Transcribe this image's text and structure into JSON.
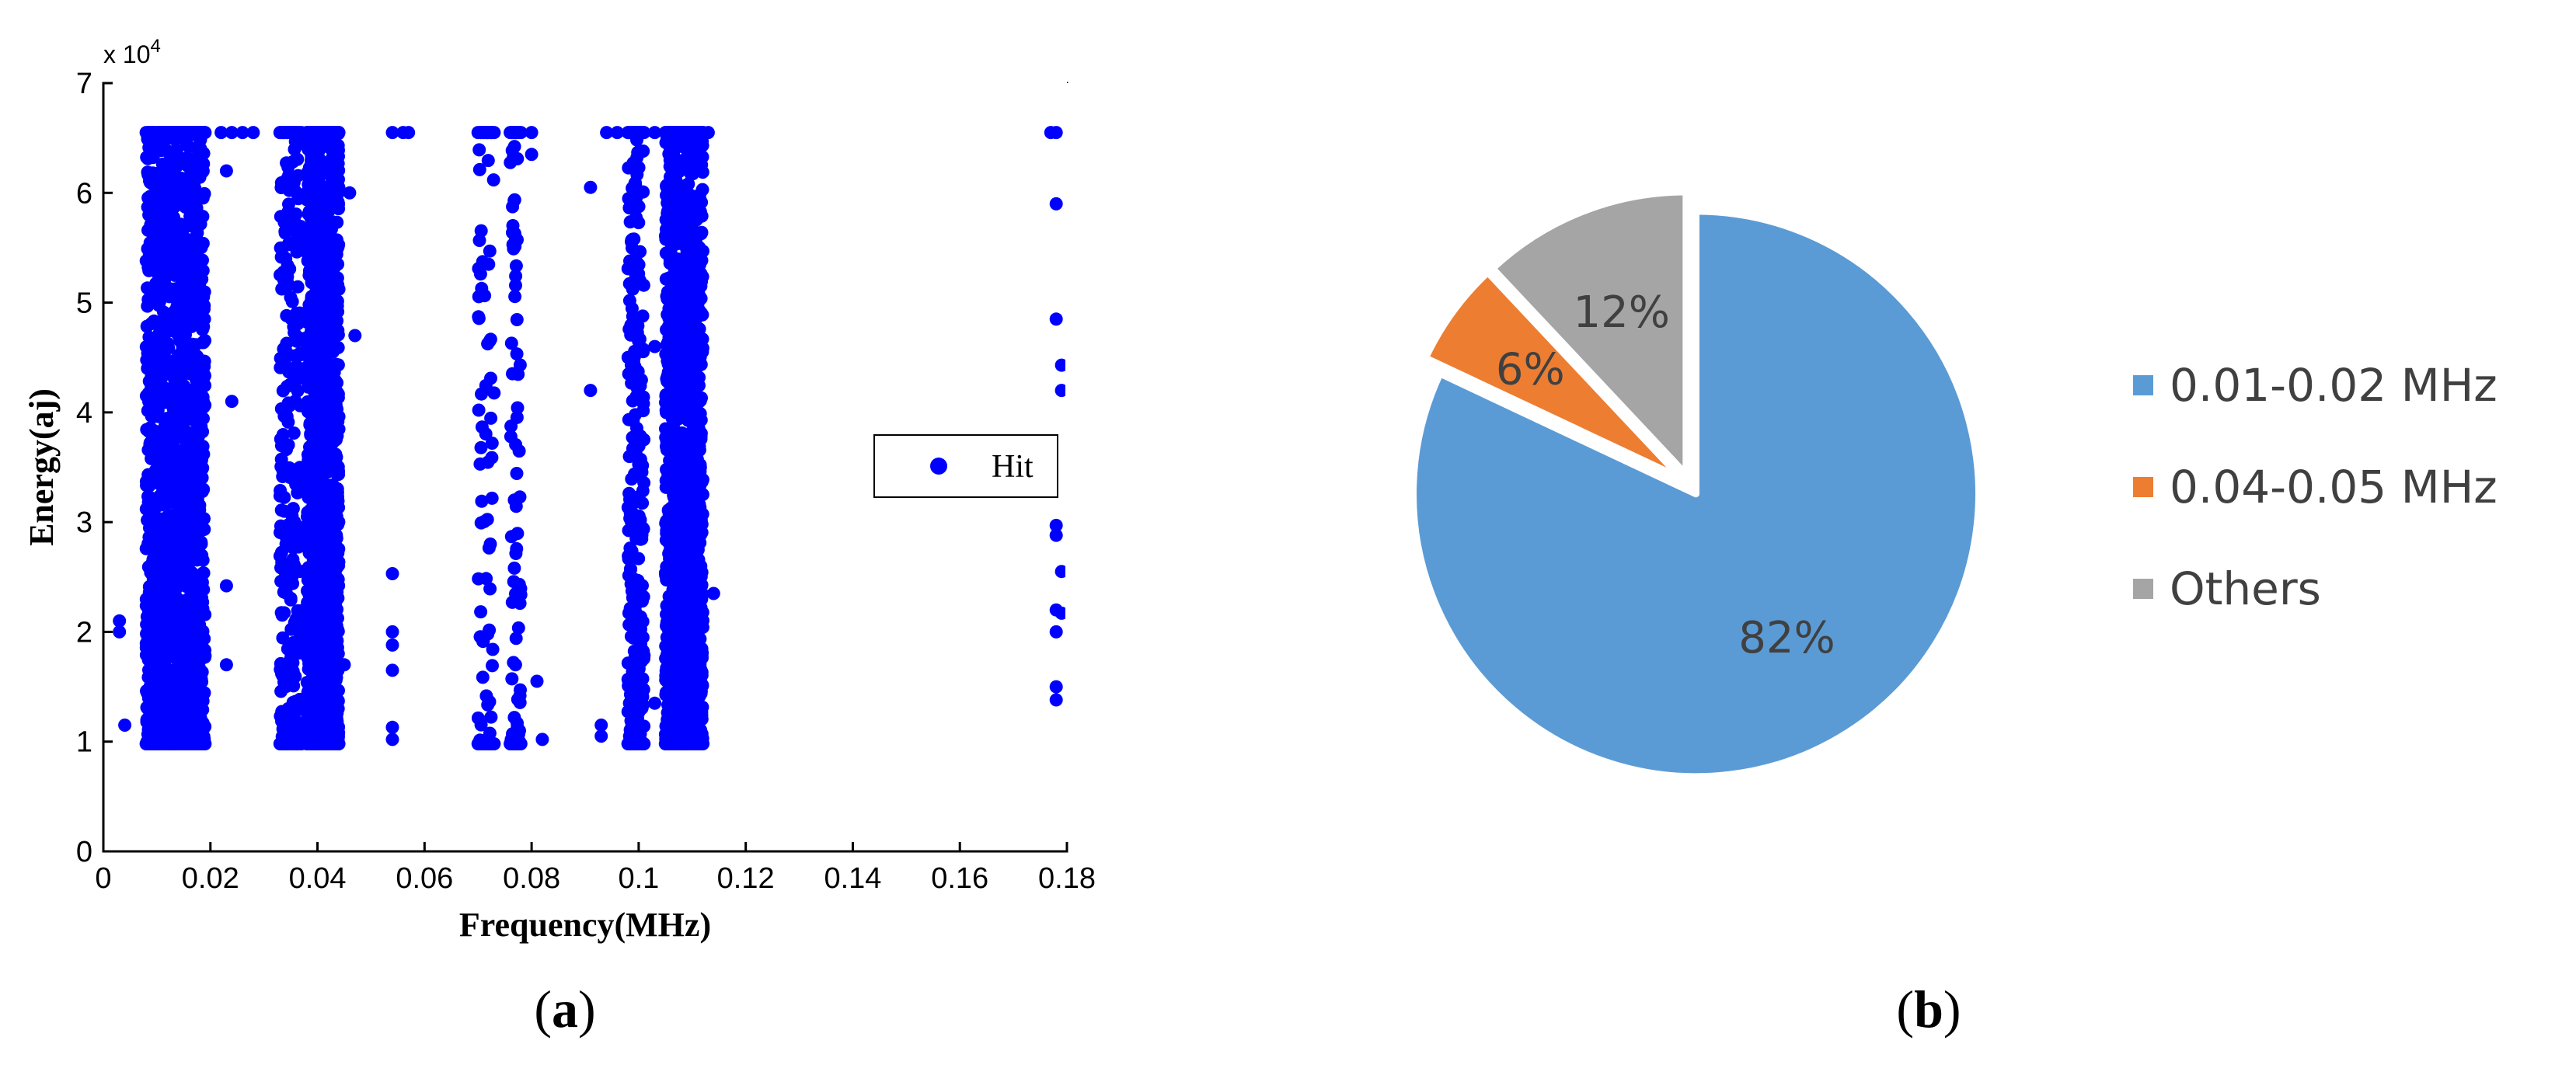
{
  "chart_data": [
    {
      "type": "scatter",
      "panel_label": "a",
      "xlabel": "Frequency(MHz)",
      "ylabel": "Energy(aj)",
      "y_multiplier": "x 10",
      "y_multiplier_exp": "4",
      "xlim": [
        0,
        0.18
      ],
      "ylim": [
        0,
        70000
      ],
      "x_ticks": [
        "0",
        "0.02",
        "0.04",
        "0.06",
        "0.08",
        "0.1",
        "0.12",
        "0.14",
        "0.16",
        "0.18"
      ],
      "y_ticks": [
        "0",
        "1",
        "2",
        "3",
        "4",
        "5",
        "6",
        "7"
      ],
      "grid": false,
      "legend_position": "right-middle",
      "legend": [
        "Hit"
      ],
      "marker_color": "#0000ff",
      "series": [
        {
          "name": "Hit",
          "bands": [
            {
              "x_range": [
                0.008,
                0.019
              ],
              "y_range": [
                9800,
                65500
              ],
              "density": "very-high"
            },
            {
              "x_range": [
                0.033,
                0.037
              ],
              "y_range": [
                9800,
                65500
              ],
              "density": "medium"
            },
            {
              "x_range": [
                0.038,
                0.044
              ],
              "y_range": [
                9800,
                65500
              ],
              "density": "very-high"
            },
            {
              "x_range": [
                0.07,
                0.073
              ],
              "y_range": [
                9800,
                65500
              ],
              "density": "low"
            },
            {
              "x_range": [
                0.076,
                0.078
              ],
              "y_range": [
                9800,
                65500
              ],
              "density": "low"
            },
            {
              "x_range": [
                0.098,
                0.101
              ],
              "y_range": [
                9800,
                65500
              ],
              "density": "medium"
            },
            {
              "x_range": [
                0.105,
                0.112
              ],
              "y_range": [
                9800,
                65500
              ],
              "density": "very-high"
            }
          ],
          "points": [
            [
              0.003,
              21000
            ],
            [
              0.003,
              20000
            ],
            [
              0.004,
              11500
            ],
            [
              0.023,
              24200
            ],
            [
              0.023,
              17000
            ],
            [
              0.024,
              41000
            ],
            [
              0.023,
              62000
            ],
            [
              0.022,
              65500
            ],
            [
              0.024,
              65500
            ],
            [
              0.026,
              65500
            ],
            [
              0.028,
              65500
            ],
            [
              0.045,
              17000
            ],
            [
              0.046,
              60000
            ],
            [
              0.047,
              47000
            ],
            [
              0.054,
              25300
            ],
            [
              0.054,
              20000
            ],
            [
              0.054,
              18800
            ],
            [
              0.054,
              16500
            ],
            [
              0.054,
              11300
            ],
            [
              0.054,
              10200
            ],
            [
              0.054,
              65500
            ],
            [
              0.056,
              65500
            ],
            [
              0.057,
              65500
            ],
            [
              0.082,
              10200
            ],
            [
              0.081,
              15500
            ],
            [
              0.08,
              63500
            ],
            [
              0.08,
              65500
            ],
            [
              0.091,
              60500
            ],
            [
              0.091,
              42000
            ],
            [
              0.093,
              11500
            ],
            [
              0.093,
              10500
            ],
            [
              0.094,
              65500
            ],
            [
              0.096,
              65500
            ],
            [
              0.103,
              46000
            ],
            [
              0.103,
              13500
            ],
            [
              0.103,
              65500
            ],
            [
              0.113,
              65500
            ],
            [
              0.114,
              23500
            ],
            [
              0.177,
              65500
            ],
            [
              0.178,
              65500
            ],
            [
              0.178,
              59000
            ],
            [
              0.178,
              48500
            ],
            [
              0.179,
              44300
            ],
            [
              0.179,
              42000
            ],
            [
              0.178,
              29700
            ],
            [
              0.178,
              28800
            ],
            [
              0.179,
              25500
            ],
            [
              0.178,
              22000
            ],
            [
              0.179,
              21700
            ],
            [
              0.178,
              20000
            ],
            [
              0.178,
              15000
            ],
            [
              0.178,
              13800
            ]
          ]
        }
      ]
    },
    {
      "type": "pie",
      "panel_label": "b",
      "start": "12 o'clock, clockwise",
      "exploded": true,
      "legend_position": "right",
      "slices": [
        {
          "label": "0.01-0.02 MHz",
          "value": 82,
          "display": "82%",
          "color": "#5b9bd5"
        },
        {
          "label": "0.04-0.05 MHz",
          "value": 6,
          "display": "6%",
          "color": "#ed7d31"
        },
        {
          "label": "Others",
          "value": 12,
          "display": "12%",
          "color": "#a5a5a5"
        }
      ]
    }
  ]
}
